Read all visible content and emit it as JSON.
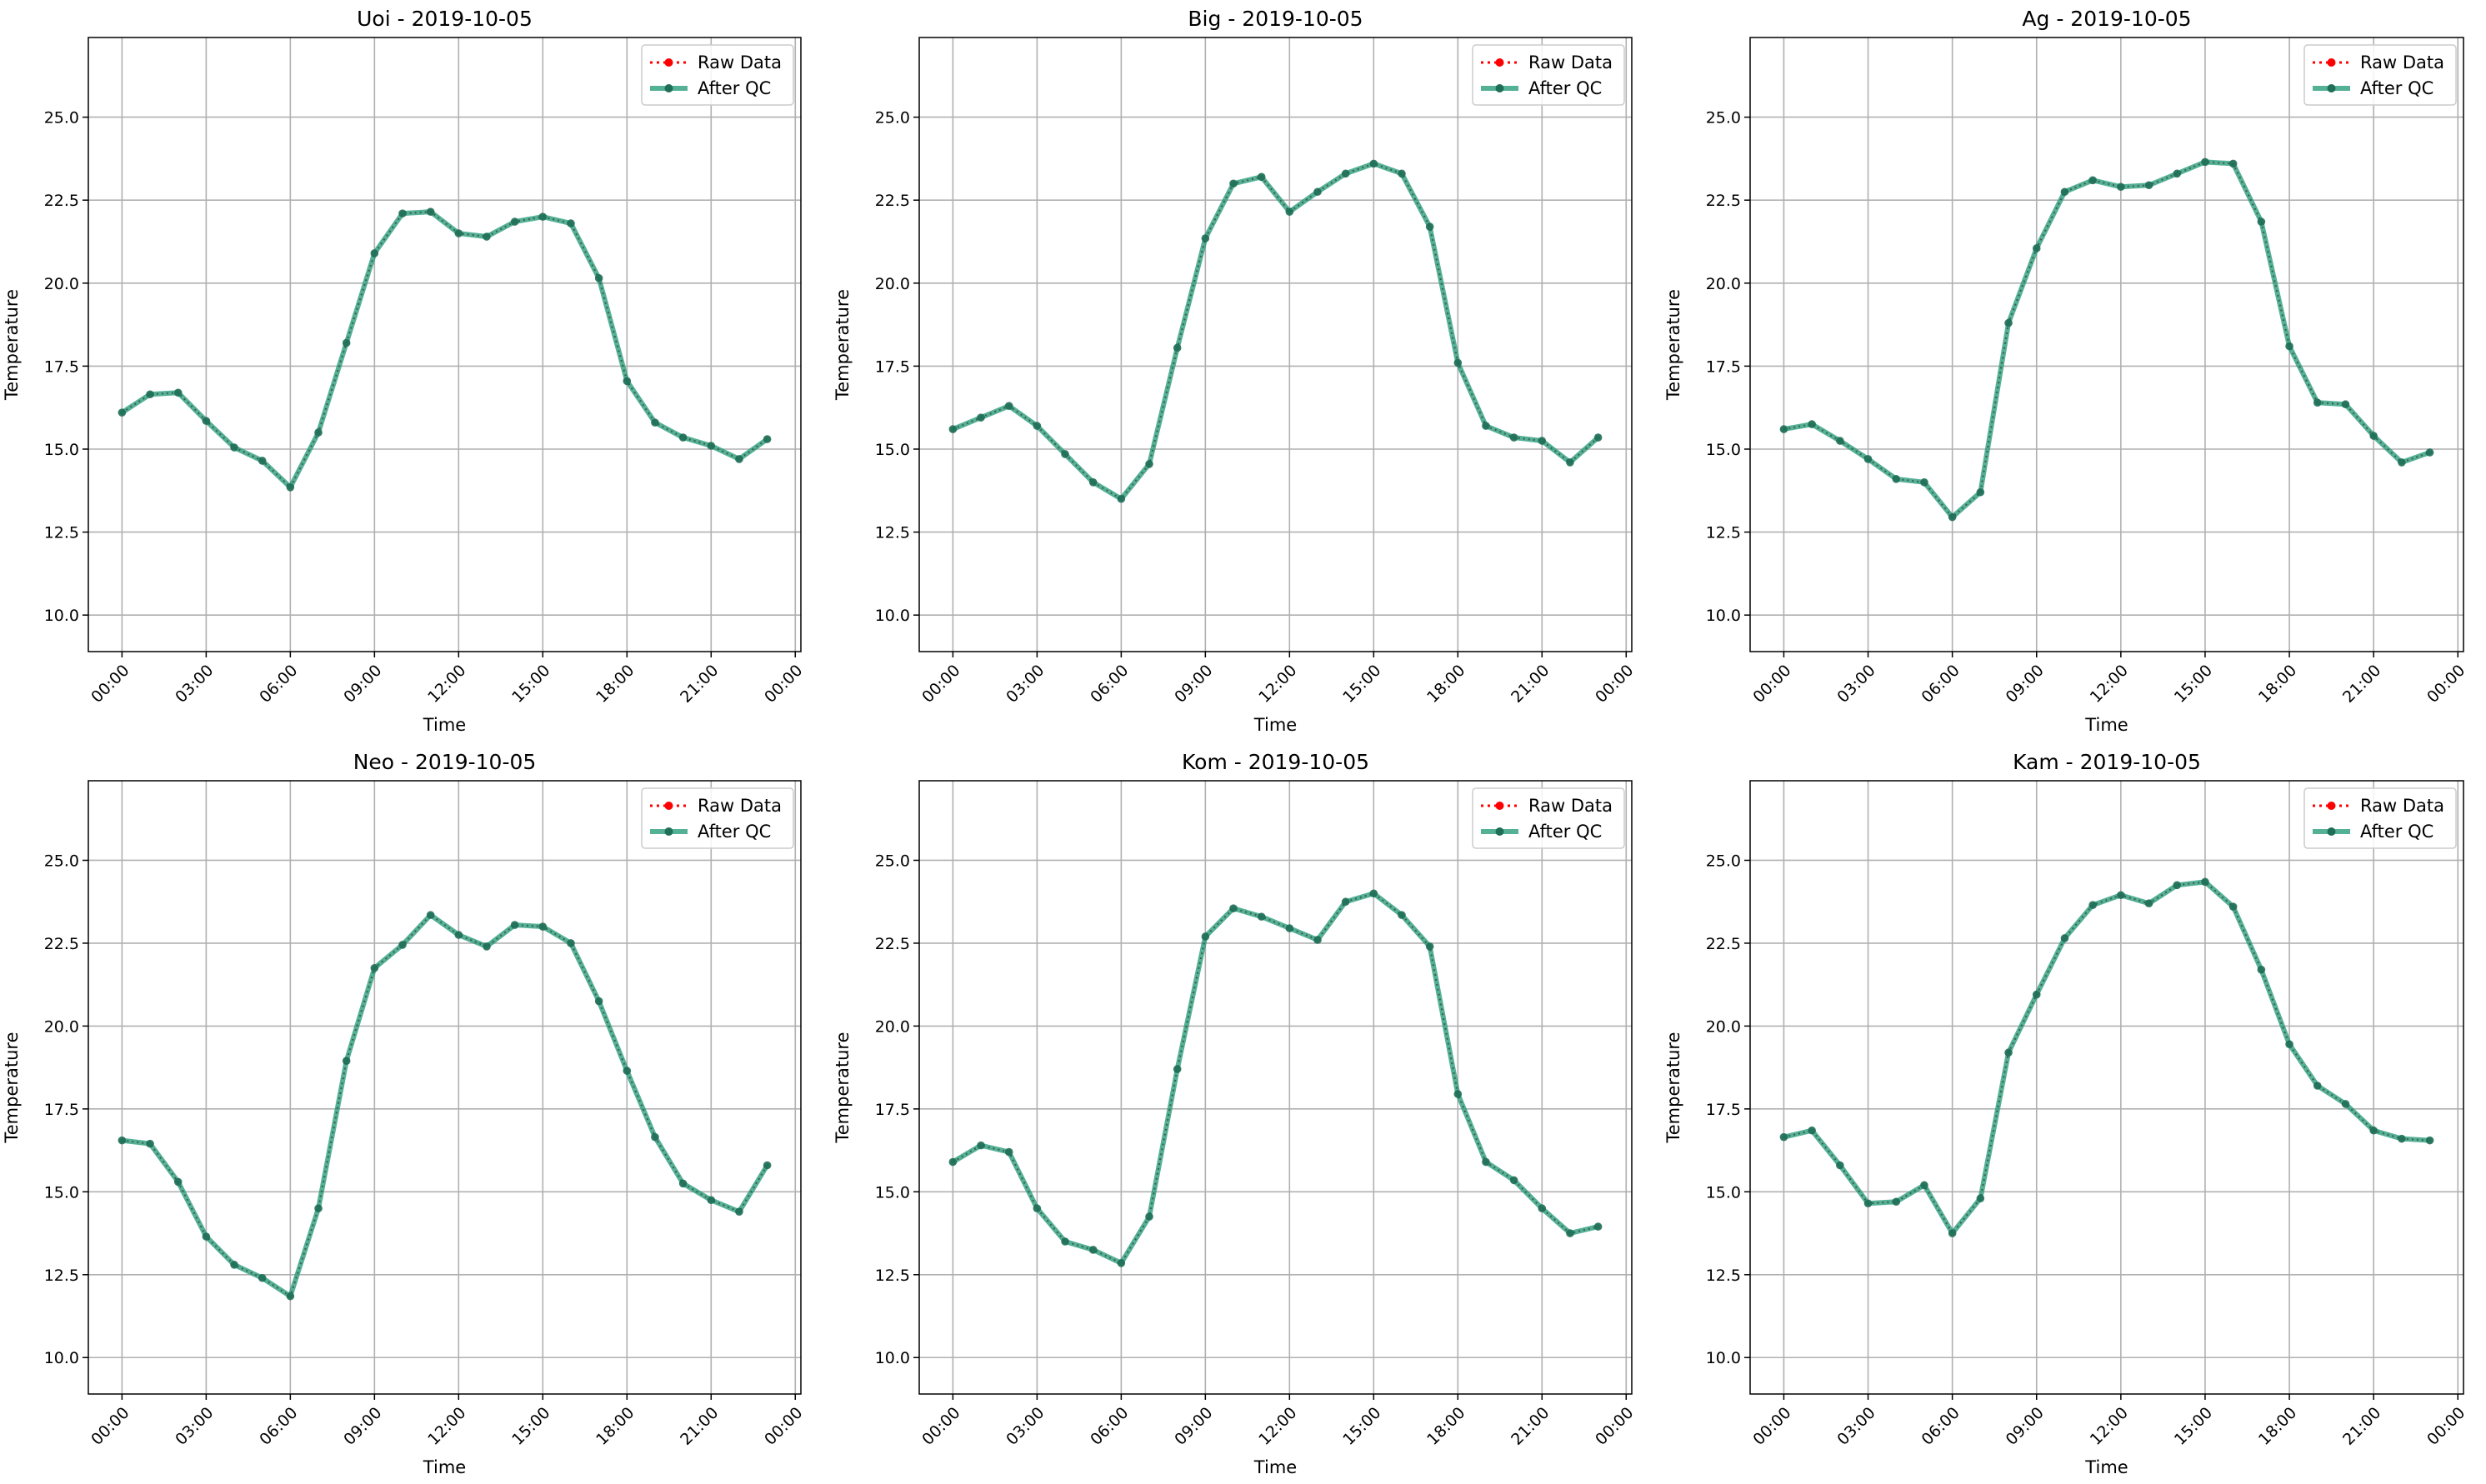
{
  "chart_data": [
    {
      "type": "line",
      "title": "Uoi - 2019-10-05",
      "xlabel": "Time",
      "ylabel": "Temperature",
      "x_tick_labels": [
        "00:00",
        "03:00",
        "06:00",
        "09:00",
        "12:00",
        "15:00",
        "18:00",
        "21:00",
        "00:00"
      ],
      "y_tick_labels": [
        "10.0",
        "12.5",
        "15.0",
        "17.5",
        "20.0",
        "22.5",
        "25.0"
      ],
      "xlim": [
        -1.2,
        24.2
      ],
      "ylim": [
        8.9,
        27.4
      ],
      "grid": true,
      "legend": "top-right",
      "x_hours": [
        0,
        1,
        2,
        3,
        4,
        5,
        6,
        7,
        8,
        9,
        10,
        11,
        12,
        13,
        14,
        15,
        16,
        17,
        18,
        19,
        20,
        21,
        22,
        23
      ],
      "series": [
        {
          "name": "Raw Data",
          "style": "dotted-markers",
          "color": "#ff0000",
          "values": [
            16.1,
            16.65,
            16.7,
            15.85,
            15.05,
            14.65,
            13.85,
            15.5,
            18.2,
            20.9,
            22.1,
            22.15,
            21.5,
            21.4,
            21.85,
            22.0,
            21.8,
            20.15,
            17.05,
            15.8,
            15.35,
            15.1,
            14.7,
            15.3
          ]
        },
        {
          "name": "After QC",
          "style": "solid-markers",
          "color": "#2a9d7c",
          "values": [
            16.1,
            16.65,
            16.7,
            15.85,
            15.05,
            14.65,
            13.85,
            15.5,
            18.2,
            20.9,
            22.1,
            22.15,
            21.5,
            21.4,
            21.85,
            22.0,
            21.8,
            20.15,
            17.05,
            15.8,
            15.35,
            15.1,
            14.7,
            15.3
          ]
        }
      ]
    },
    {
      "type": "line",
      "title": "Big - 2019-10-05",
      "xlabel": "Time",
      "ylabel": "Temperature",
      "x_tick_labels": [
        "00:00",
        "03:00",
        "06:00",
        "09:00",
        "12:00",
        "15:00",
        "18:00",
        "21:00",
        "00:00"
      ],
      "y_tick_labels": [
        "10.0",
        "12.5",
        "15.0",
        "17.5",
        "20.0",
        "22.5",
        "25.0"
      ],
      "xlim": [
        -1.2,
        24.2
      ],
      "ylim": [
        8.9,
        27.4
      ],
      "grid": true,
      "legend": "top-right",
      "x_hours": [
        0,
        1,
        2,
        3,
        4,
        5,
        6,
        7,
        8,
        9,
        10,
        11,
        12,
        13,
        14,
        15,
        16,
        17,
        18,
        19,
        20,
        21,
        22,
        23
      ],
      "series": [
        {
          "name": "Raw Data",
          "style": "dotted-markers",
          "color": "#ff0000",
          "values": [
            15.6,
            15.95,
            16.3,
            15.7,
            14.85,
            14.0,
            13.5,
            14.55,
            18.05,
            21.35,
            23.0,
            23.2,
            22.15,
            22.75,
            23.3,
            23.6,
            23.3,
            21.7,
            17.6,
            15.7,
            15.35,
            15.25,
            14.6,
            15.35
          ]
        },
        {
          "name": "After QC",
          "style": "solid-markers",
          "color": "#2a9d7c",
          "values": [
            15.6,
            15.95,
            16.3,
            15.7,
            14.85,
            14.0,
            13.5,
            14.55,
            18.05,
            21.35,
            23.0,
            23.2,
            22.15,
            22.75,
            23.3,
            23.6,
            23.3,
            21.7,
            17.6,
            15.7,
            15.35,
            15.25,
            14.6,
            15.35
          ]
        }
      ]
    },
    {
      "type": "line",
      "title": "Ag - 2019-10-05",
      "xlabel": "Time",
      "ylabel": "Temperature",
      "x_tick_labels": [
        "00:00",
        "03:00",
        "06:00",
        "09:00",
        "12:00",
        "15:00",
        "18:00",
        "21:00",
        "00:00"
      ],
      "y_tick_labels": [
        "10.0",
        "12.5",
        "15.0",
        "17.5",
        "20.0",
        "22.5",
        "25.0"
      ],
      "xlim": [
        -1.2,
        24.2
      ],
      "ylim": [
        8.9,
        27.4
      ],
      "grid": true,
      "legend": "top-right",
      "x_hours": [
        0,
        1,
        2,
        3,
        4,
        5,
        6,
        7,
        8,
        9,
        10,
        11,
        12,
        13,
        14,
        15,
        16,
        17,
        18,
        19,
        20,
        21,
        22,
        23
      ],
      "series": [
        {
          "name": "Raw Data",
          "style": "dotted-markers",
          "color": "#ff0000",
          "values": [
            15.6,
            15.75,
            15.25,
            14.7,
            14.1,
            14.0,
            12.95,
            13.7,
            18.8,
            21.05,
            22.75,
            23.1,
            22.9,
            22.95,
            23.3,
            23.65,
            23.6,
            21.85,
            18.1,
            16.4,
            16.35,
            15.4,
            14.6,
            14.9
          ]
        },
        {
          "name": "After QC",
          "style": "solid-markers",
          "color": "#2a9d7c",
          "values": [
            15.6,
            15.75,
            15.25,
            14.7,
            14.1,
            14.0,
            12.95,
            13.7,
            18.8,
            21.05,
            22.75,
            23.1,
            22.9,
            22.95,
            23.3,
            23.65,
            23.6,
            21.85,
            18.1,
            16.4,
            16.35,
            15.4,
            14.6,
            14.9
          ]
        }
      ]
    },
    {
      "type": "line",
      "title": "Neo - 2019-10-05",
      "xlabel": "Time",
      "ylabel": "Temperature",
      "x_tick_labels": [
        "00:00",
        "03:00",
        "06:00",
        "09:00",
        "12:00",
        "15:00",
        "18:00",
        "21:00",
        "00:00"
      ],
      "y_tick_labels": [
        "10.0",
        "12.5",
        "15.0",
        "17.5",
        "20.0",
        "22.5",
        "25.0"
      ],
      "xlim": [
        -1.2,
        24.2
      ],
      "ylim": [
        8.9,
        27.4
      ],
      "grid": true,
      "legend": "top-right",
      "x_hours": [
        0,
        1,
        2,
        3,
        4,
        5,
        6,
        7,
        8,
        9,
        10,
        11,
        12,
        13,
        14,
        15,
        16,
        17,
        18,
        19,
        20,
        21,
        22,
        23
      ],
      "series": [
        {
          "name": "Raw Data",
          "style": "dotted-markers",
          "color": "#ff0000",
          "values": [
            16.55,
            16.45,
            15.3,
            13.65,
            12.8,
            12.4,
            11.85,
            14.5,
            18.95,
            21.75,
            22.45,
            23.35,
            22.75,
            22.4,
            23.05,
            23.0,
            22.5,
            20.75,
            18.65,
            16.65,
            15.25,
            14.75,
            14.4,
            15.8
          ]
        },
        {
          "name": "After QC",
          "style": "solid-markers",
          "color": "#2a9d7c",
          "values": [
            16.55,
            16.45,
            15.3,
            13.65,
            12.8,
            12.4,
            11.85,
            14.5,
            18.95,
            21.75,
            22.45,
            23.35,
            22.75,
            22.4,
            23.05,
            23.0,
            22.5,
            20.75,
            18.65,
            16.65,
            15.25,
            14.75,
            14.4,
            15.8
          ]
        }
      ]
    },
    {
      "type": "line",
      "title": "Kom - 2019-10-05",
      "xlabel": "Time",
      "ylabel": "Temperature",
      "x_tick_labels": [
        "00:00",
        "03:00",
        "06:00",
        "09:00",
        "12:00",
        "15:00",
        "18:00",
        "21:00",
        "00:00"
      ],
      "y_tick_labels": [
        "10.0",
        "12.5",
        "15.0",
        "17.5",
        "20.0",
        "22.5",
        "25.0"
      ],
      "xlim": [
        -1.2,
        24.2
      ],
      "ylim": [
        8.9,
        27.4
      ],
      "grid": true,
      "legend": "top-right",
      "x_hours": [
        0,
        1,
        2,
        3,
        4,
        5,
        6,
        7,
        8,
        9,
        10,
        11,
        12,
        13,
        14,
        15,
        16,
        17,
        18,
        19,
        20,
        21,
        22,
        23
      ],
      "series": [
        {
          "name": "Raw Data",
          "style": "dotted-markers",
          "color": "#ff0000",
          "values": [
            15.9,
            16.4,
            16.2,
            14.5,
            13.5,
            13.25,
            12.85,
            14.25,
            18.7,
            22.7,
            23.55,
            23.3,
            22.95,
            22.6,
            23.75,
            24.0,
            23.35,
            22.4,
            17.95,
            15.9,
            15.35,
            14.5,
            13.75,
            13.95
          ]
        },
        {
          "name": "After QC",
          "style": "solid-markers",
          "color": "#2a9d7c",
          "values": [
            15.9,
            16.4,
            16.2,
            14.5,
            13.5,
            13.25,
            12.85,
            14.25,
            18.7,
            22.7,
            23.55,
            23.3,
            22.95,
            22.6,
            23.75,
            24.0,
            23.35,
            22.4,
            17.95,
            15.9,
            15.35,
            14.5,
            13.75,
            13.95
          ]
        }
      ]
    },
    {
      "type": "line",
      "title": "Kam - 2019-10-05",
      "xlabel": "Time",
      "ylabel": "Temperature",
      "x_tick_labels": [
        "00:00",
        "03:00",
        "06:00",
        "09:00",
        "12:00",
        "15:00",
        "18:00",
        "21:00",
        "00:00"
      ],
      "y_tick_labels": [
        "10.0",
        "12.5",
        "15.0",
        "17.5",
        "20.0",
        "22.5",
        "25.0"
      ],
      "xlim": [
        -1.2,
        24.2
      ],
      "ylim": [
        8.9,
        27.4
      ],
      "grid": true,
      "legend": "top-right",
      "x_hours": [
        0,
        1,
        2,
        3,
        4,
        5,
        6,
        7,
        8,
        9,
        10,
        11,
        12,
        13,
        14,
        15,
        16,
        17,
        18,
        19,
        20,
        21,
        22,
        23
      ],
      "series": [
        {
          "name": "Raw Data",
          "style": "dotted-markers",
          "color": "#ff0000",
          "values": [
            16.65,
            16.85,
            15.8,
            14.65,
            14.7,
            15.2,
            13.75,
            14.8,
            19.2,
            20.95,
            22.65,
            23.65,
            23.95,
            23.7,
            24.25,
            24.35,
            23.6,
            21.7,
            19.45,
            18.2,
            17.65,
            16.85,
            16.6,
            16.55
          ]
        },
        {
          "name": "After QC",
          "style": "solid-markers",
          "color": "#2a9d7c",
          "values": [
            16.65,
            16.85,
            15.8,
            14.65,
            14.7,
            15.2,
            13.75,
            14.8,
            19.2,
            20.95,
            22.65,
            23.65,
            23.95,
            23.7,
            24.25,
            24.35,
            23.6,
            21.7,
            19.45,
            18.2,
            17.65,
            16.85,
            16.6,
            16.55
          ]
        }
      ]
    }
  ]
}
